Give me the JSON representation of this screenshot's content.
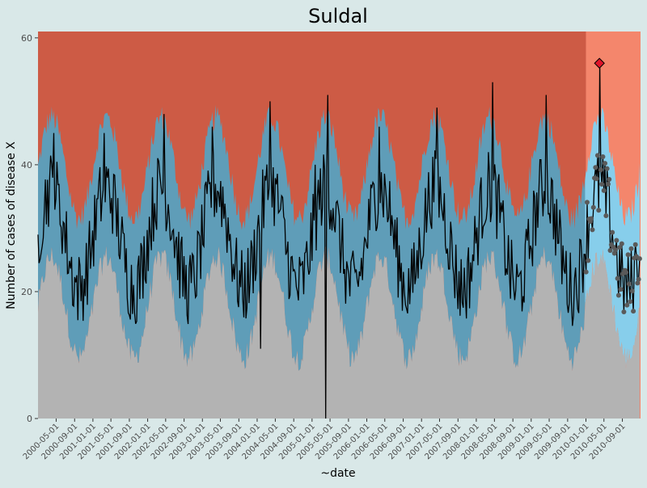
{
  "chart_data": {
    "type": "area",
    "title": "Suldal",
    "xlabel": "~date",
    "ylabel": "Number of cases of disease X",
    "ylim": [
      0,
      61
    ],
    "xlim": [
      "2000-01-01",
      "2010-12-31"
    ],
    "yticks": [
      0,
      20,
      40,
      60
    ],
    "xticks": [
      "2000-05-01",
      "2000-09-01",
      "2001-01-01",
      "2001-05-01",
      "2001-09-01",
      "2002-01-01",
      "2002-05-01",
      "2002-09-01",
      "2003-01-01",
      "2003-05-01",
      "2003-09-01",
      "2004-01-01",
      "2004-05-01",
      "2004-09-01",
      "2005-01-01",
      "2005-05-01",
      "2005-09-01",
      "2006-01-01",
      "2006-05-01",
      "2006-09-01",
      "2007-01-01",
      "2007-05-01",
      "2007-09-01",
      "2008-01-01",
      "2008-05-01",
      "2008-09-01",
      "2009-01-01",
      "2009-05-01",
      "2009-09-01",
      "2010-01-01",
      "2010-05-01",
      "2010-09-01"
    ],
    "grid": false,
    "prediction_start": "2010-01-01",
    "colors": {
      "background": "#d9e8e8",
      "upper_zone": "#cd5b45",
      "expected_band": "#5f9db8",
      "lower_zone": "#b3b3b3",
      "upper_zone_pred": "#f4866c",
      "expected_band_pred": "#87ceeb",
      "observed_line": "#000000",
      "pred_points": "#5a5a5a",
      "outbreak_marker": "#e0142a"
    },
    "baseline": {
      "mean": 28.5,
      "seasonal_amplitude": 8,
      "peak_month": 3,
      "band_low_offset": -11,
      "band_high_offset": 11,
      "weekly_noise": 6
    },
    "peaks": [
      {
        "date": "2000-04-15",
        "value": 45
      },
      {
        "date": "2001-03-20",
        "value": 45
      },
      {
        "date": "2002-04-20",
        "value": 48
      },
      {
        "date": "2003-03-10",
        "value": 46
      },
      {
        "date": "2004-03-25",
        "value": 50
      },
      {
        "date": "2005-04-15",
        "value": 51
      },
      {
        "date": "2006-03-25",
        "value": 46
      },
      {
        "date": "2007-04-15",
        "value": 49
      },
      {
        "date": "2008-04-20",
        "value": 53
      },
      {
        "date": "2009-04-10",
        "value": 51
      },
      {
        "date": "2010-04-01",
        "value": 56
      }
    ],
    "anomalies": [
      {
        "date": "2005-04-01",
        "value": 0
      },
      {
        "date": "2005-01-20",
        "value": 40
      },
      {
        "date": "2004-01-25",
        "value": 11
      }
    ],
    "prediction_points_range": [
      22,
      38
    ],
    "outbreak": {
      "date": "2010-04-01",
      "value": 56
    }
  }
}
